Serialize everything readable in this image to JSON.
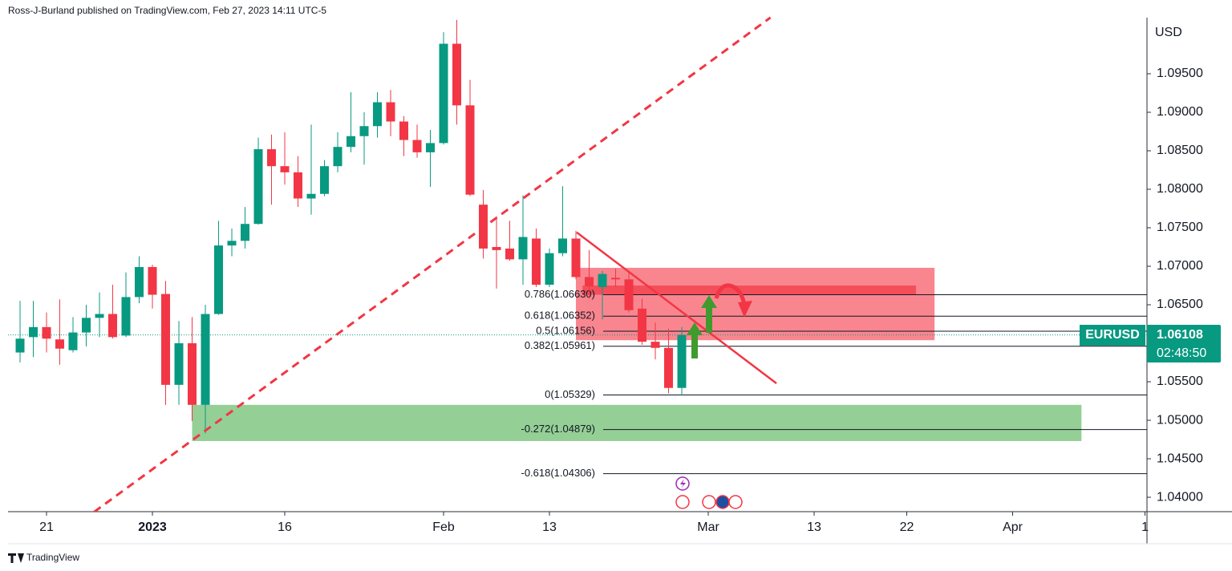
{
  "chart_data": {
    "type": "candlestick",
    "header": "Ross-J-Burland published on TradingView.com, Feb 27, 2023 14:11 UTC-5",
    "currency": "USD",
    "symbol": "EURUSD",
    "last_price": 1.06108,
    "countdown": "02:48:50",
    "brand": "TradingView",
    "up_color": "#089981",
    "down_color": "#f23645",
    "x": [
      -2,
      -1,
      0,
      1,
      2,
      3,
      4,
      5,
      6,
      7,
      8,
      9,
      10,
      11,
      12,
      13,
      14,
      15,
      16,
      17,
      18,
      19,
      20,
      21,
      22,
      23,
      24,
      25,
      26,
      27,
      28,
      29,
      30,
      31,
      32,
      33,
      34,
      35,
      36,
      37,
      38,
      39,
      40,
      41,
      42,
      43,
      44,
      45,
      46,
      47,
      48
    ],
    "open": [
      1.0588,
      1.0608,
      1.0621,
      1.0605,
      1.0591,
      1.0614,
      1.0633,
      1.0638,
      1.061,
      1.066,
      1.0699,
      1.0664,
      1.0546,
      1.06,
      1.052,
      1.0638,
      1.0727,
      1.0733,
      1.0755,
      1.0852,
      1.083,
      1.0822,
      1.0788,
      1.0794,
      1.083,
      1.0855,
      1.0869,
      1.0882,
      1.0913,
      1.0888,
      1.0864,
      1.0848,
      1.086,
      1.0989,
      1.0909,
      1.078,
      1.0725,
      1.0723,
      1.0709,
      1.0736,
      1.0676,
      1.0717,
      1.0736,
      1.0686,
      1.0673,
      1.0685,
      1.0683,
      1.0645,
      1.0602,
      1.0594,
      1.0542
    ],
    "high": [
      1.0655,
      1.0655,
      1.064,
      1.0657,
      1.0634,
      1.065,
      1.0666,
      1.0676,
      1.0692,
      1.0713,
      1.0702,
      1.0681,
      1.0629,
      1.0634,
      1.065,
      1.0759,
      1.0749,
      1.0777,
      1.0867,
      1.0871,
      1.0874,
      1.0843,
      1.0884,
      1.0838,
      1.0874,
      1.0926,
      1.09,
      1.0926,
      1.0929,
      1.0895,
      1.0884,
      1.0877,
      1.1004,
      1.102,
      1.0942,
      1.0799,
      1.0765,
      1.0759,
      1.0792,
      1.0749,
      1.0723,
      1.0804,
      1.0746,
      1.0721,
      1.0694,
      1.0697,
      1.0694,
      1.0658,
      1.0627,
      1.0619,
      1.0621
    ],
    "low": [
      1.0575,
      1.0582,
      1.0588,
      1.0572,
      1.0588,
      1.0596,
      1.0608,
      1.0606,
      1.0608,
      1.0652,
      1.0645,
      1.052,
      1.052,
      1.0499,
      1.0483,
      1.0637,
      1.0713,
      1.0723,
      1.0754,
      1.078,
      1.0806,
      1.0777,
      1.0767,
      1.0791,
      1.0822,
      1.0848,
      1.0832,
      1.0867,
      1.0869,
      1.0843,
      1.0841,
      1.0803,
      1.0858,
      1.0884,
      1.0791,
      1.071,
      1.0671,
      1.0707,
      1.0676,
      1.0673,
      1.0673,
      1.0713,
      1.0683,
      1.0658,
      1.0631,
      1.0673,
      1.064,
      1.0598,
      1.0579,
      1.0535,
      1.0532
    ],
    "close": [
      1.0606,
      1.0621,
      1.0606,
      1.0593,
      1.0614,
      1.0633,
      1.0638,
      1.0608,
      1.066,
      1.0699,
      1.0663,
      1.0546,
      1.06,
      1.052,
      1.0638,
      1.0727,
      1.0733,
      1.0755,
      1.0852,
      1.083,
      1.0822,
      1.0788,
      1.0794,
      1.083,
      1.0855,
      1.0869,
      1.0882,
      1.0913,
      1.0888,
      1.0864,
      1.0848,
      1.086,
      1.0989,
      1.0909,
      1.0793,
      1.0723,
      1.0721,
      1.0709,
      1.0738,
      1.0676,
      1.0717,
      1.0736,
      1.0686,
      1.0674,
      1.069,
      1.0683,
      1.0643,
      1.0602,
      1.0594,
      1.0542,
      1.06108
    ],
    "xlim": [
      -2.91,
      83.15
    ],
    "xticks": [
      {
        "value": 0,
        "label": "21"
      },
      {
        "value": 8,
        "label": "2023"
      },
      {
        "value": 18,
        "label": "16"
      },
      {
        "value": 30,
        "label": "Feb"
      },
      {
        "value": 38,
        "label": "13"
      },
      {
        "value": 50,
        "label": "Mar"
      },
      {
        "value": 58,
        "label": "13"
      },
      {
        "value": 65,
        "label": "22"
      },
      {
        "value": 73,
        "label": "Apr"
      },
      {
        "value": 83,
        "label": "1"
      }
    ],
    "ylim": [
      1.03813,
      1.10458
    ],
    "yticks": [
      {
        "value": 1.04,
        "label": "1.04000"
      },
      {
        "value": 1.045,
        "label": "1.04500"
      },
      {
        "value": 1.05,
        "label": "1.05000"
      },
      {
        "value": 1.055,
        "label": "1.05500"
      },
      {
        "value": 1.065,
        "label": "1.06500"
      },
      {
        "value": 1.07,
        "label": "1.07000"
      },
      {
        "value": 1.075,
        "label": "1.07500"
      },
      {
        "value": 1.08,
        "label": "1.08000"
      },
      {
        "value": 1.085,
        "label": "1.08500"
      },
      {
        "value": 1.09,
        "label": "1.09000"
      },
      {
        "value": 1.095,
        "label": "1.09500"
      }
    ],
    "fib_levels": [
      {
        "label": "0.786(1.06630)",
        "value": 1.0663
      },
      {
        "label": "0.618(1.06352)",
        "value": 1.06352
      },
      {
        "label": "0.5(1.06156)",
        "value": 1.06156
      },
      {
        "label": "0.382(1.05961)",
        "value": 1.05961
      },
      {
        "label": "0(1.05329)",
        "value": 1.05329
      },
      {
        "label": "-0.272(1.04879)",
        "value": 1.04879
      },
      {
        "label": "-0.618(1.04306)",
        "value": 1.04306
      }
    ],
    "zones": [
      {
        "x": [
          40,
          67.1
        ],
        "y": [
          1.0604,
          1.0698
        ],
        "color": "#f7525f"
      },
      {
        "x": [
          40.5,
          65.7
        ],
        "y": [
          1.0663,
          1.0675
        ],
        "color": "#f23645"
      },
      {
        "x": [
          11,
          78.2
        ],
        "y": [
          1.0473,
          1.052
        ],
        "color": "#66bb6a"
      }
    ],
    "trendlines": [
      {
        "x": [
          3.6,
          54.7
        ],
        "y": [
          1.0381,
          1.1023
        ],
        "color": "#f23645",
        "dashed": true
      },
      {
        "x": [
          40.06,
          55.15
        ],
        "y": [
          1.0744,
          1.0548
        ],
        "color": "#f23645",
        "dashed": false
      }
    ]
  }
}
